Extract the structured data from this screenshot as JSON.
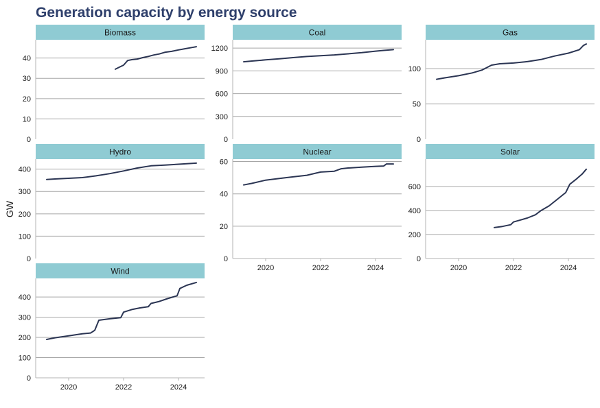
{
  "colors": {
    "title": "#2e3f6b",
    "strip": "#8fcbd3",
    "line": "#2b3553",
    "grid": "#a6a6a6",
    "axis": "#b3b3b3"
  },
  "chart_data": {
    "type": "line",
    "title": "Generation capacity by energy source",
    "xlabel": "",
    "ylabel": "GW",
    "xlim": [
      2018.8,
      2024.95
    ],
    "x_ticks": [
      2020,
      2022,
      2024
    ],
    "x_tick_labels": [
      "2020",
      "2022",
      "2024"
    ],
    "panels": [
      {
        "name": "Biomass",
        "ylim": [
          0,
          49
        ],
        "y_ticks": [
          0,
          10,
          20,
          30,
          40
        ],
        "y_tick_labels": [
          "0",
          "10",
          "20",
          "30",
          "40"
        ],
        "x": [
          2021.7,
          2021.85,
          2022.0,
          2022.15,
          2022.3,
          2022.5,
          2022.7,
          2022.9,
          2023.1,
          2023.3,
          2023.5,
          2023.75,
          2024.0,
          2024.25,
          2024.5,
          2024.65
        ],
        "values": [
          34.5,
          35.5,
          36.5,
          38.8,
          39.2,
          39.5,
          40.2,
          40.8,
          41.5,
          42.0,
          42.8,
          43.3,
          44.0,
          44.6,
          45.2,
          45.6
        ]
      },
      {
        "name": "Coal",
        "ylim": [
          0,
          1310
        ],
        "y_ticks": [
          0,
          300,
          600,
          900,
          1200
        ],
        "y_tick_labels": [
          "0",
          "300",
          "600",
          "900",
          "1200"
        ],
        "x": [
          2019.2,
          2019.5,
          2020.0,
          2020.5,
          2021.0,
          2021.5,
          2022.0,
          2022.5,
          2023.0,
          2023.5,
          2024.0,
          2024.3,
          2024.65
        ],
        "values": [
          1020,
          1030,
          1045,
          1060,
          1075,
          1090,
          1100,
          1110,
          1125,
          1140,
          1160,
          1170,
          1180
        ]
      },
      {
        "name": "Gas",
        "ylim": [
          0,
          141
        ],
        "y_ticks": [
          0,
          50,
          100
        ],
        "y_tick_labels": [
          "0",
          "50",
          "100"
        ],
        "x": [
          2019.2,
          2019.5,
          2020.0,
          2020.5,
          2020.85,
          2021.0,
          2021.2,
          2021.5,
          2022.0,
          2022.5,
          2023.0,
          2023.5,
          2024.0,
          2024.4,
          2024.55,
          2024.65
        ],
        "values": [
          85,
          87,
          90,
          94,
          98,
          101,
          105,
          107,
          108,
          110,
          113,
          118,
          122,
          127,
          133,
          135
        ]
      },
      {
        "name": "Hydro",
        "ylim": [
          0,
          445
        ],
        "y_ticks": [
          0,
          100,
          200,
          300,
          400
        ],
        "y_tick_labels": [
          "0",
          "100",
          "200",
          "300",
          "400"
        ],
        "x": [
          2019.2,
          2019.5,
          2020.0,
          2020.5,
          2021.0,
          2021.5,
          2022.0,
          2022.5,
          2023.0,
          2023.5,
          2024.0,
          2024.65
        ],
        "values": [
          354,
          356,
          359,
          362,
          370,
          380,
          392,
          405,
          415,
          418,
          422,
          427
        ]
      },
      {
        "name": "Nuclear",
        "ylim": [
          0,
          61.5
        ],
        "y_ticks": [
          0,
          20,
          40,
          60
        ],
        "y_tick_labels": [
          "0",
          "20",
          "40",
          "60"
        ],
        "x": [
          2019.2,
          2019.5,
          2020.0,
          2020.5,
          2021.0,
          2021.5,
          2022.0,
          2022.5,
          2022.75,
          2023.0,
          2023.5,
          2024.0,
          2024.3,
          2024.4,
          2024.65
        ],
        "values": [
          45.5,
          46.5,
          48.5,
          49.5,
          50.5,
          51.5,
          53.5,
          54.0,
          55.5,
          56.0,
          56.5,
          57.0,
          57.2,
          58.5,
          58.5
        ]
      },
      {
        "name": "Solar",
        "ylim": [
          0,
          830
        ],
        "y_ticks": [
          0,
          200,
          400,
          600
        ],
        "y_tick_labels": [
          "0",
          "200",
          "400",
          "600"
        ],
        "x": [
          2021.3,
          2021.6,
          2021.9,
          2022.0,
          2022.2,
          2022.5,
          2022.8,
          2023.0,
          2023.3,
          2023.6,
          2023.9,
          2024.05,
          2024.3,
          2024.5,
          2024.65
        ],
        "values": [
          258,
          268,
          282,
          305,
          318,
          338,
          365,
          400,
          440,
          495,
          550,
          620,
          665,
          705,
          745
        ]
      },
      {
        "name": "Wind",
        "ylim": [
          0,
          492
        ],
        "y_ticks": [
          0,
          100,
          200,
          300,
          400
        ],
        "y_tick_labels": [
          "0",
          "100",
          "200",
          "300",
          "400"
        ],
        "x": [
          2019.2,
          2019.5,
          2020.0,
          2020.5,
          2020.8,
          2020.95,
          2021.1,
          2021.5,
          2021.9,
          2022.0,
          2022.3,
          2022.6,
          2022.9,
          2023.0,
          2023.3,
          2023.6,
          2023.95,
          2024.05,
          2024.3,
          2024.65
        ],
        "values": [
          190,
          198,
          208,
          218,
          222,
          235,
          285,
          292,
          298,
          325,
          338,
          346,
          352,
          368,
          378,
          392,
          406,
          442,
          458,
          472
        ]
      }
    ]
  }
}
